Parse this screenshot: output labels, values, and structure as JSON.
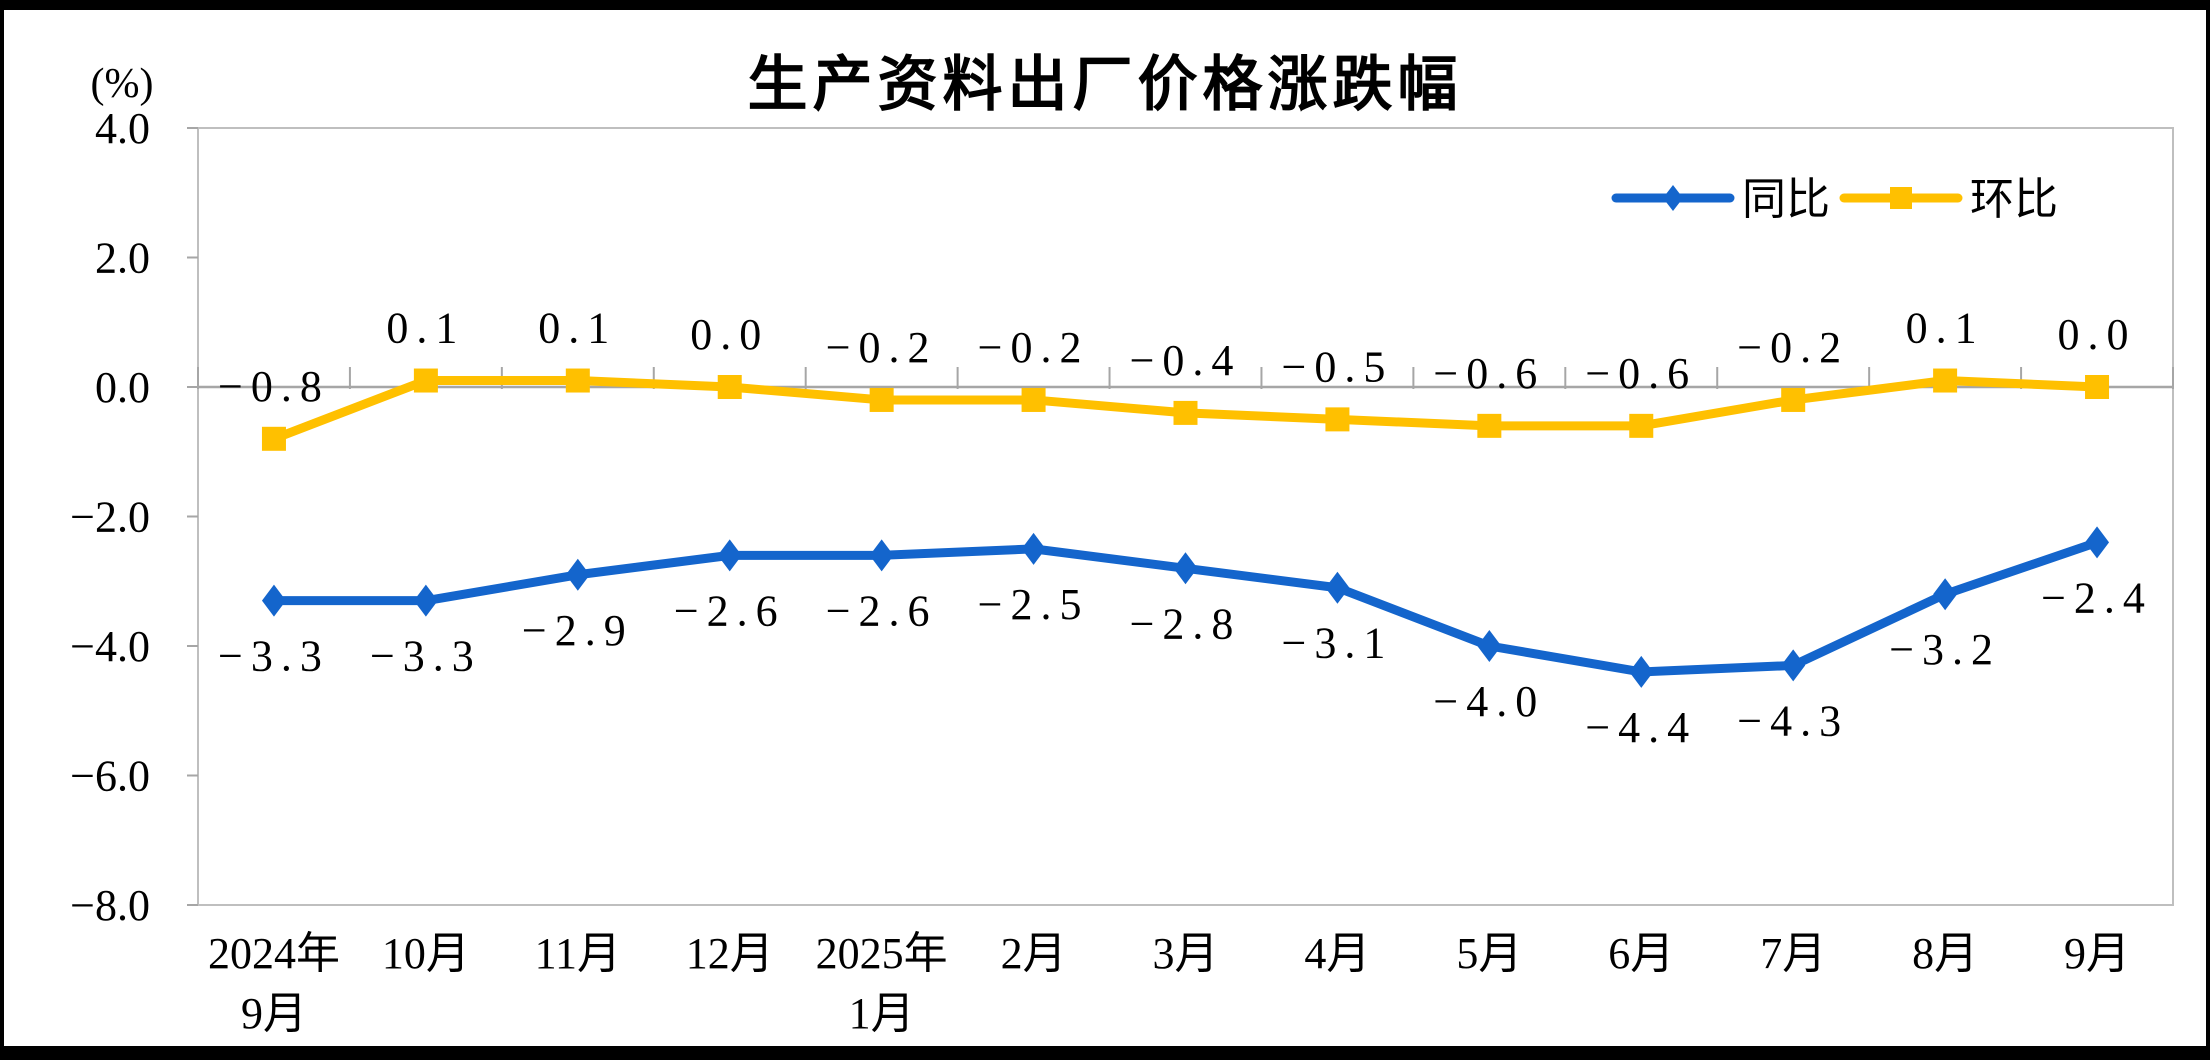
{
  "frame": {
    "border_color": "#000000",
    "background": "#FFFFFF"
  },
  "chart": {
    "title": "生产资料出厂价格涨跌幅",
    "unit_label": "(%)",
    "colors": {
      "yoy_blue": "#1465CC",
      "mom_yellow": "#FFC000",
      "axis_gray": "#BFBFBF",
      "zero_line_gray": "#A6A6A6",
      "text": "#000000"
    }
  },
  "chart_data": {
    "type": "line",
    "title": "生产资料出厂价格涨跌幅",
    "ylabel": "(%)",
    "ylim": [
      -8.0,
      4.0
    ],
    "yticks": [
      4.0,
      2.0,
      0.0,
      -2.0,
      -4.0,
      -6.0,
      -8.0
    ],
    "ytick_labels": [
      "4.0",
      "2.0",
      "0.0",
      "-2.0",
      "-4.0",
      "-6.0",
      "-8.0"
    ],
    "categories": [
      "2024年\n9月",
      "10月",
      "11月",
      "12月",
      "2025年\n1月",
      "2月",
      "3月",
      "4月",
      "5月",
      "6月",
      "7月",
      "8月",
      "9月"
    ],
    "series": [
      {
        "id": "yoy",
        "name": "同比",
        "color": "#1465CC",
        "marker": "diamond",
        "label_position": "below",
        "values": [
          -3.3,
          -3.3,
          -2.9,
          -2.6,
          -2.6,
          -2.5,
          -2.8,
          -3.1,
          -4.0,
          -4.4,
          -4.3,
          -3.2,
          -2.4
        ],
        "labels": [
          "-3.3",
          "-3.3",
          "-2.9",
          "-2.6",
          "-2.6",
          "-2.5",
          "-2.8",
          "-3.1",
          "-4.0",
          "-4.4",
          "-4.3",
          "-3.2",
          "-2.4"
        ]
      },
      {
        "id": "mom",
        "name": "环比",
        "color": "#FFC000",
        "marker": "square",
        "label_position": "above",
        "values": [
          -0.8,
          0.1,
          0.1,
          0.0,
          -0.2,
          -0.2,
          -0.4,
          -0.5,
          -0.6,
          -0.6,
          -0.2,
          0.1,
          0.0
        ],
        "labels": [
          "-0.8",
          "0.1",
          "0.1",
          "0.0",
          "-0.2",
          "-0.2",
          "-0.4",
          "-0.5",
          "-0.6",
          "-0.6",
          "-0.2",
          "0.1",
          "0.0"
        ]
      }
    ],
    "grid": false,
    "legend_position": "top-right-inside",
    "legend": [
      "同比",
      "环比"
    ]
  }
}
